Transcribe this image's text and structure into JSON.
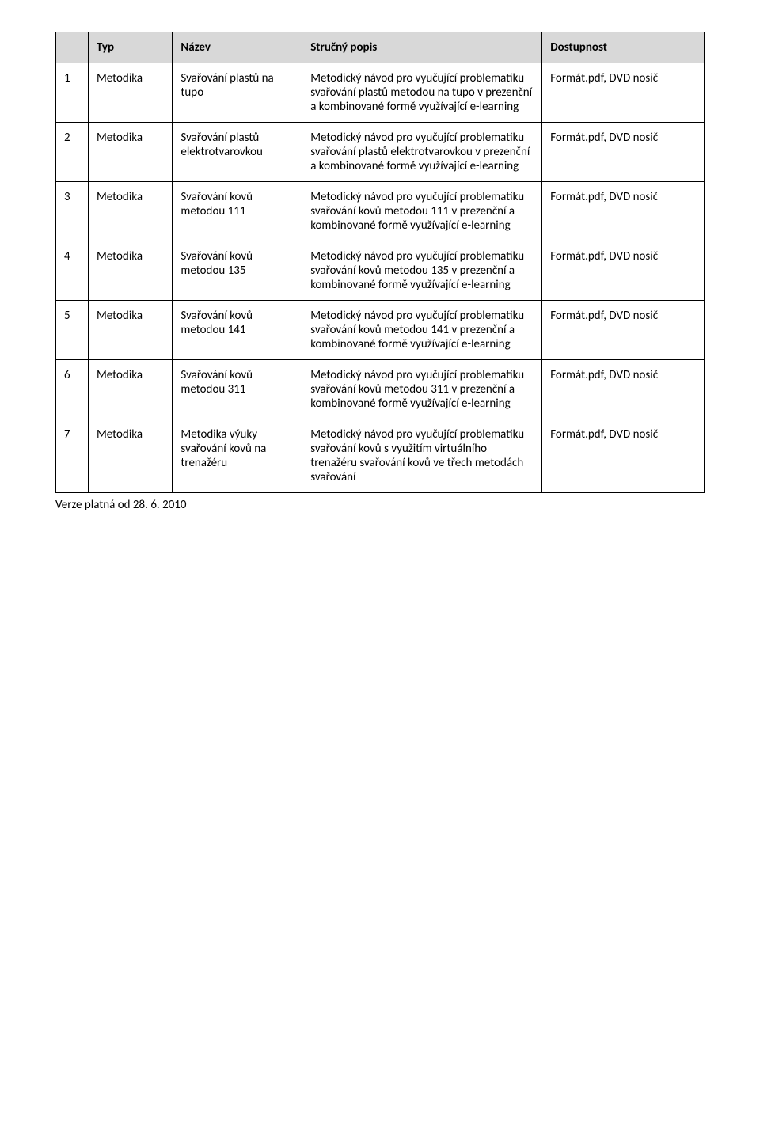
{
  "table": {
    "headers": [
      "",
      "Typ",
      "Název",
      "Stručný popis",
      "Dostupnost"
    ],
    "header_bg": "#d8d8d8",
    "border_color": "#000000",
    "rows": [
      {
        "num": "1",
        "typ": "Metodika",
        "nazev": "Svařování plastů na tupo",
        "popis": "Metodický návod pro vyučující problematiku svařování plastů metodou na tupo v prezenční a kombinované formě využívající e-learning",
        "dostupnost": "Formát.pdf, DVD nosič"
      },
      {
        "num": "2",
        "typ": "Metodika",
        "nazev": "Svařování plastů elektrotvarovkou",
        "popis": "Metodický návod pro vyučující problematiku svařování plastů elektrotvarovkou v prezenční a kombinované formě využívající e-learning",
        "dostupnost": "Formát.pdf, DVD nosič"
      },
      {
        "num": "3",
        "typ": "Metodika",
        "nazev": "Svařování kovů metodou 111",
        "popis": "Metodický návod pro vyučující problematiku svařování kovů metodou 111 v prezenční a kombinované formě využívající e-learning",
        "dostupnost": "Formát.pdf, DVD nosič"
      },
      {
        "num": "4",
        "typ": "Metodika",
        "nazev": "Svařování kovů metodou 135",
        "popis": "Metodický návod pro vyučující problematiku svařování kovů metodou 135 v prezenční a kombinované formě využívající e-learning",
        "dostupnost": "Formát.pdf, DVD nosič"
      },
      {
        "num": "5",
        "typ": "Metodika",
        "nazev": "Svařování kovů metodou 141",
        "popis": "Metodický návod pro vyučující problematiku svařování kovů metodou 141 v prezenční a kombinované formě využívající e-learning",
        "dostupnost": "Formát.pdf, DVD nosič"
      },
      {
        "num": "6",
        "typ": "Metodika",
        "nazev": "Svařování kovů metodou 311",
        "popis": "Metodický návod pro vyučující problematiku svařování kovů metodou 311 v prezenční a kombinované formě využívající e-learning",
        "dostupnost": "Formát.pdf, DVD nosič"
      },
      {
        "num": "7",
        "typ": "Metodika",
        "nazev": "Metodika výuky svařování kovů na trenažéru",
        "popis": "Metodický návod pro vyučující problematiku svařování kovů s využitím virtuálního trenažéru svařování kovů ve třech metodách svařování",
        "dostupnost": "Formát.pdf, DVD nosič"
      }
    ]
  },
  "footer": "Verze platná od 28. 6. 2010"
}
